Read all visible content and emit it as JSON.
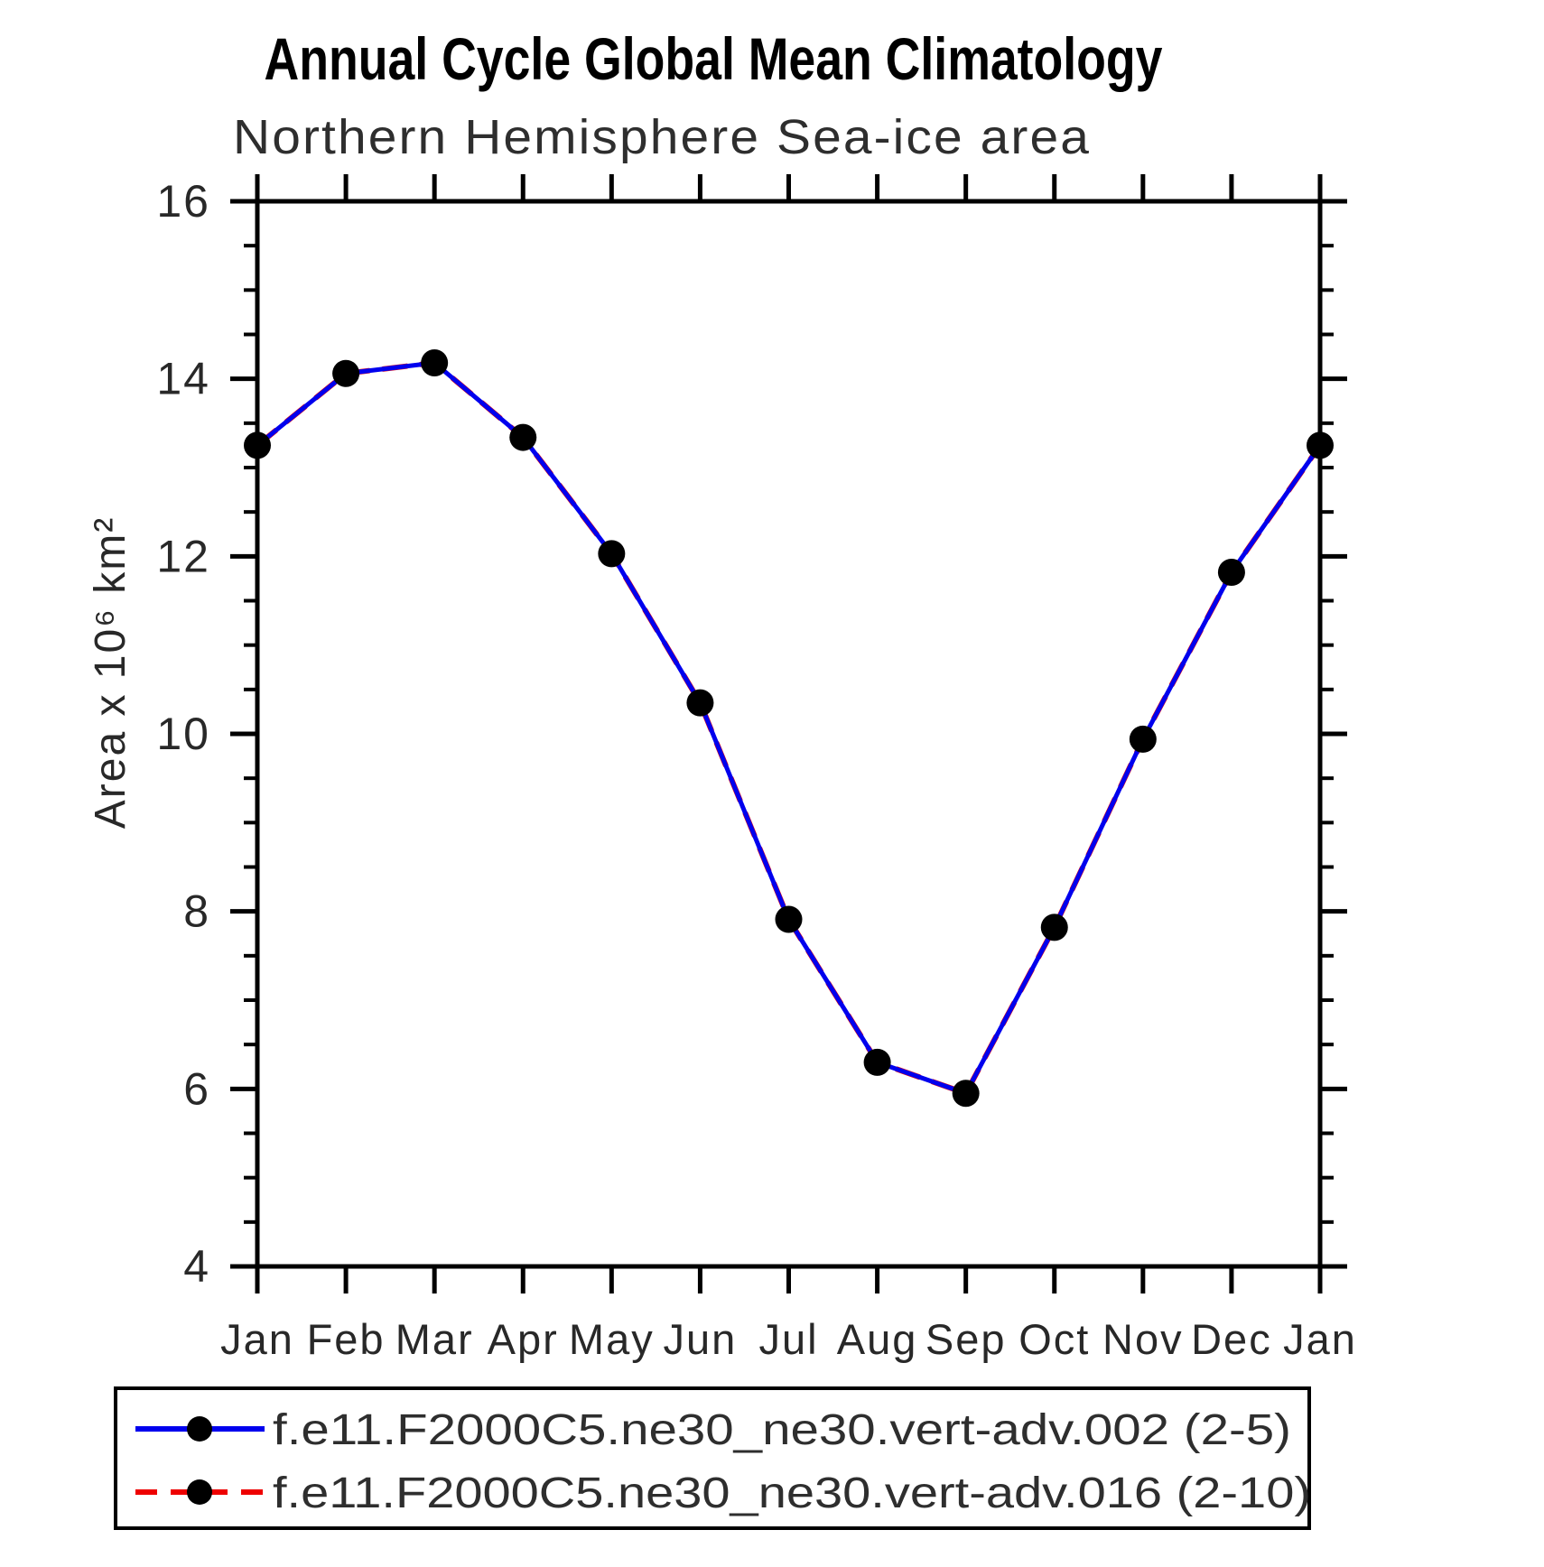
{
  "chart_data": {
    "type": "line",
    "title": "Annual Cycle Global Mean Climatology",
    "subtitle": "Northern Hemisphere Sea-ice area",
    "ylabel": "Area x 10⁶ km²",
    "xlabel": "",
    "categories": [
      "Jan",
      "Feb",
      "Mar",
      "Apr",
      "May",
      "Jun",
      "Jul",
      "Aug",
      "Sep",
      "Oct",
      "Nov",
      "Dec",
      "Jan"
    ],
    "ylim": [
      4,
      16
    ],
    "yticks": [
      4,
      6,
      8,
      10,
      12,
      14,
      16
    ],
    "ytick_minor_step": 0.5,
    "grid": false,
    "legend_position": "bottom",
    "axis_color": "#000000",
    "background_color": "#ffffff",
    "marker_color": "#000000",
    "series": [
      {
        "name": "f.e11.F2000C5.ne30_ne30.vert-adv.002 (2-5)",
        "color": "#0000ee",
        "style": "solid",
        "marker": "circle",
        "values": [
          13.25,
          14.06,
          14.18,
          13.34,
          12.03,
          10.35,
          7.91,
          6.3,
          5.95,
          7.82,
          9.94,
          11.82,
          13.25
        ]
      },
      {
        "name": "f.e11.F2000C5.ne30_ne30.vert-adv.016 (2-10)",
        "color": "#ee0000",
        "style": "dashed",
        "marker": "circle",
        "values": [
          13.25,
          14.06,
          14.18,
          13.34,
          12.03,
          10.35,
          7.91,
          6.3,
          5.95,
          7.82,
          9.94,
          11.82,
          13.25
        ]
      }
    ]
  }
}
